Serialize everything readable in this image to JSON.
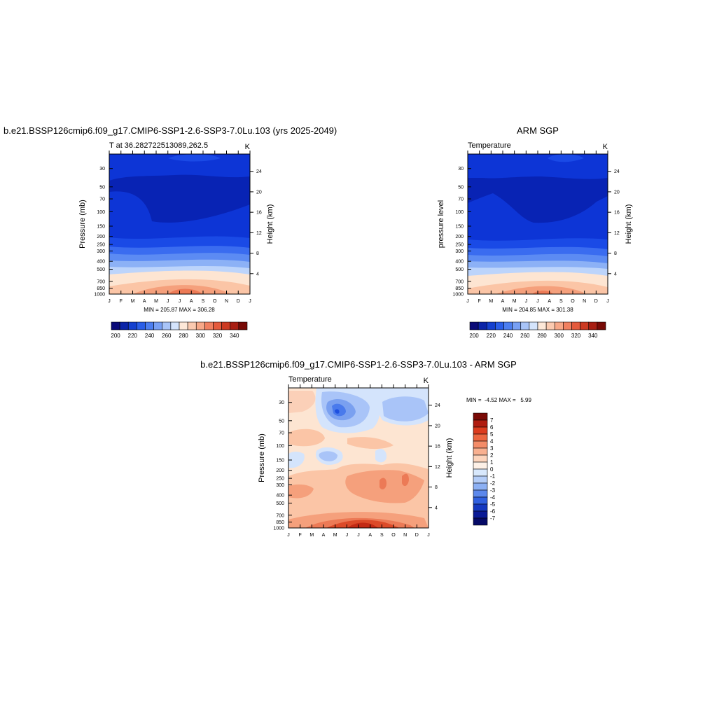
{
  "titles": {
    "model": "b.e21.BSSP126cmip6.f09_g17.CMIP6-SSP1-2.6-SSP3-7.0Lu.103 (yrs 2025-2049)",
    "obs": "ARM SGP",
    "diff": "b.e21.BSSP126cmip6.f09_g17.CMIP6-SSP1-2.6-SSP3-7.0Lu.103 - ARM SGP"
  },
  "panels": {
    "model": {
      "left_label": "T at 36.282722513089,262.5",
      "right_label": "K",
      "ylabel_left": "Pressure (mb)",
      "ylabel_right": "Height (km)",
      "stats": "MIN = 205.87 MAX = 306.28"
    },
    "obs": {
      "left_label": "Temperature",
      "right_label": "K",
      "ylabel_left": "pressure level",
      "ylabel_right": "Height (km)",
      "stats": "MIN = 204.85 MAX = 301.38"
    },
    "diff": {
      "left_label": "Temperature",
      "right_label": "K",
      "ylabel_left": "Pressure (mb)",
      "ylabel_right": "Height (km)",
      "stats": "MIN =  -4.52 MAX =   5.99"
    }
  },
  "colorbars": {
    "abs": {
      "labels": [
        "200",
        "220",
        "240",
        "260",
        "280",
        "300",
        "320",
        "340"
      ],
      "colors": [
        "#0a0a78",
        "#0b24a8",
        "#1440cf",
        "#2a5ee8",
        "#4c7ef0",
        "#78a0f4",
        "#a8c4f8",
        "#d4e4fc",
        "#fde8d8",
        "#fbcab0",
        "#f7a888",
        "#f08060",
        "#e45a3c",
        "#cc3a22",
        "#a81e12",
        "#780a06"
      ]
    },
    "diff": {
      "labels": [
        "7",
        "6",
        "5",
        "4",
        "3",
        "2",
        "1",
        "0",
        "-1",
        "-2",
        "-3",
        "-4",
        "-5",
        "-6",
        "-7"
      ],
      "colors": [
        "#7a0a06",
        "#b01c10",
        "#dc3c1e",
        "#ec6640",
        "#f48c68",
        "#f8b090",
        "#fcd4bc",
        "#fdf0e6",
        "#d8e8fc",
        "#b4cdf8",
        "#8cb0f4",
        "#5c88ec",
        "#3060e0",
        "#1438c0",
        "#0a1a96",
        "#050a66"
      ]
    }
  },
  "chart_data": [
    {
      "type": "heatmap",
      "title": "b.e21.BSSP126cmip6.f09_g17.CMIP6-SSP1-2.6-SSP3-7.0Lu.103 (yrs 2025-2049)",
      "subtitle_left": "T at 36.282722513089,262.5",
      "units": "K",
      "xlabel": "",
      "ylabel": "Pressure (mb)",
      "ylabel_right": "Height (km)",
      "x_ticks": [
        "J",
        "F",
        "M",
        "A",
        "M",
        "J",
        "J",
        "A",
        "S",
        "O",
        "N",
        "D",
        "J"
      ],
      "y_ticks": [
        30,
        50,
        70,
        100,
        150,
        200,
        250,
        300,
        400,
        500,
        700,
        850,
        1000
      ],
      "y_ticks_right": [
        24,
        20,
        16,
        12,
        8,
        4
      ],
      "ylim": [
        1000,
        20
      ],
      "y_scale": "log",
      "levels": [
        195,
        355
      ],
      "min": 205.87,
      "max": 306.28
    },
    {
      "type": "heatmap",
      "title": "ARM SGP",
      "subtitle_left": "Temperature",
      "units": "K",
      "xlabel": "",
      "ylabel": "pressure level",
      "ylabel_right": "Height (km)",
      "x_ticks": [
        "J",
        "F",
        "M",
        "A",
        "M",
        "J",
        "J",
        "A",
        "S",
        "O",
        "N",
        "D",
        "J"
      ],
      "y_ticks": [
        30,
        50,
        70,
        100,
        150,
        200,
        250,
        300,
        400,
        500,
        700,
        850,
        1000
      ],
      "y_ticks_right": [
        24,
        20,
        16,
        12,
        8,
        4
      ],
      "ylim": [
        1000,
        20
      ],
      "y_scale": "log",
      "levels": [
        195,
        355
      ],
      "min": 204.85,
      "max": 301.38
    },
    {
      "type": "heatmap",
      "title": "b.e21.BSSP126cmip6.f09_g17.CMIP6-SSP1-2.6-SSP3-7.0Lu.103 - ARM SGP",
      "subtitle_left": "Temperature",
      "units": "K",
      "xlabel": "",
      "ylabel": "Pressure (mb)",
      "ylabel_right": "Height (km)",
      "x_ticks": [
        "J",
        "F",
        "M",
        "A",
        "M",
        "J",
        "J",
        "A",
        "S",
        "O",
        "N",
        "D",
        "J"
      ],
      "y_ticks": [
        30,
        50,
        70,
        100,
        150,
        200,
        250,
        300,
        400,
        500,
        700,
        850,
        1000
      ],
      "y_ticks_right": [
        24,
        20,
        16,
        12,
        8,
        4
      ],
      "ylim": [
        1000,
        20
      ],
      "y_scale": "log",
      "levels": [
        -8,
        8
      ],
      "min": -4.52,
      "max": 5.99
    }
  ]
}
